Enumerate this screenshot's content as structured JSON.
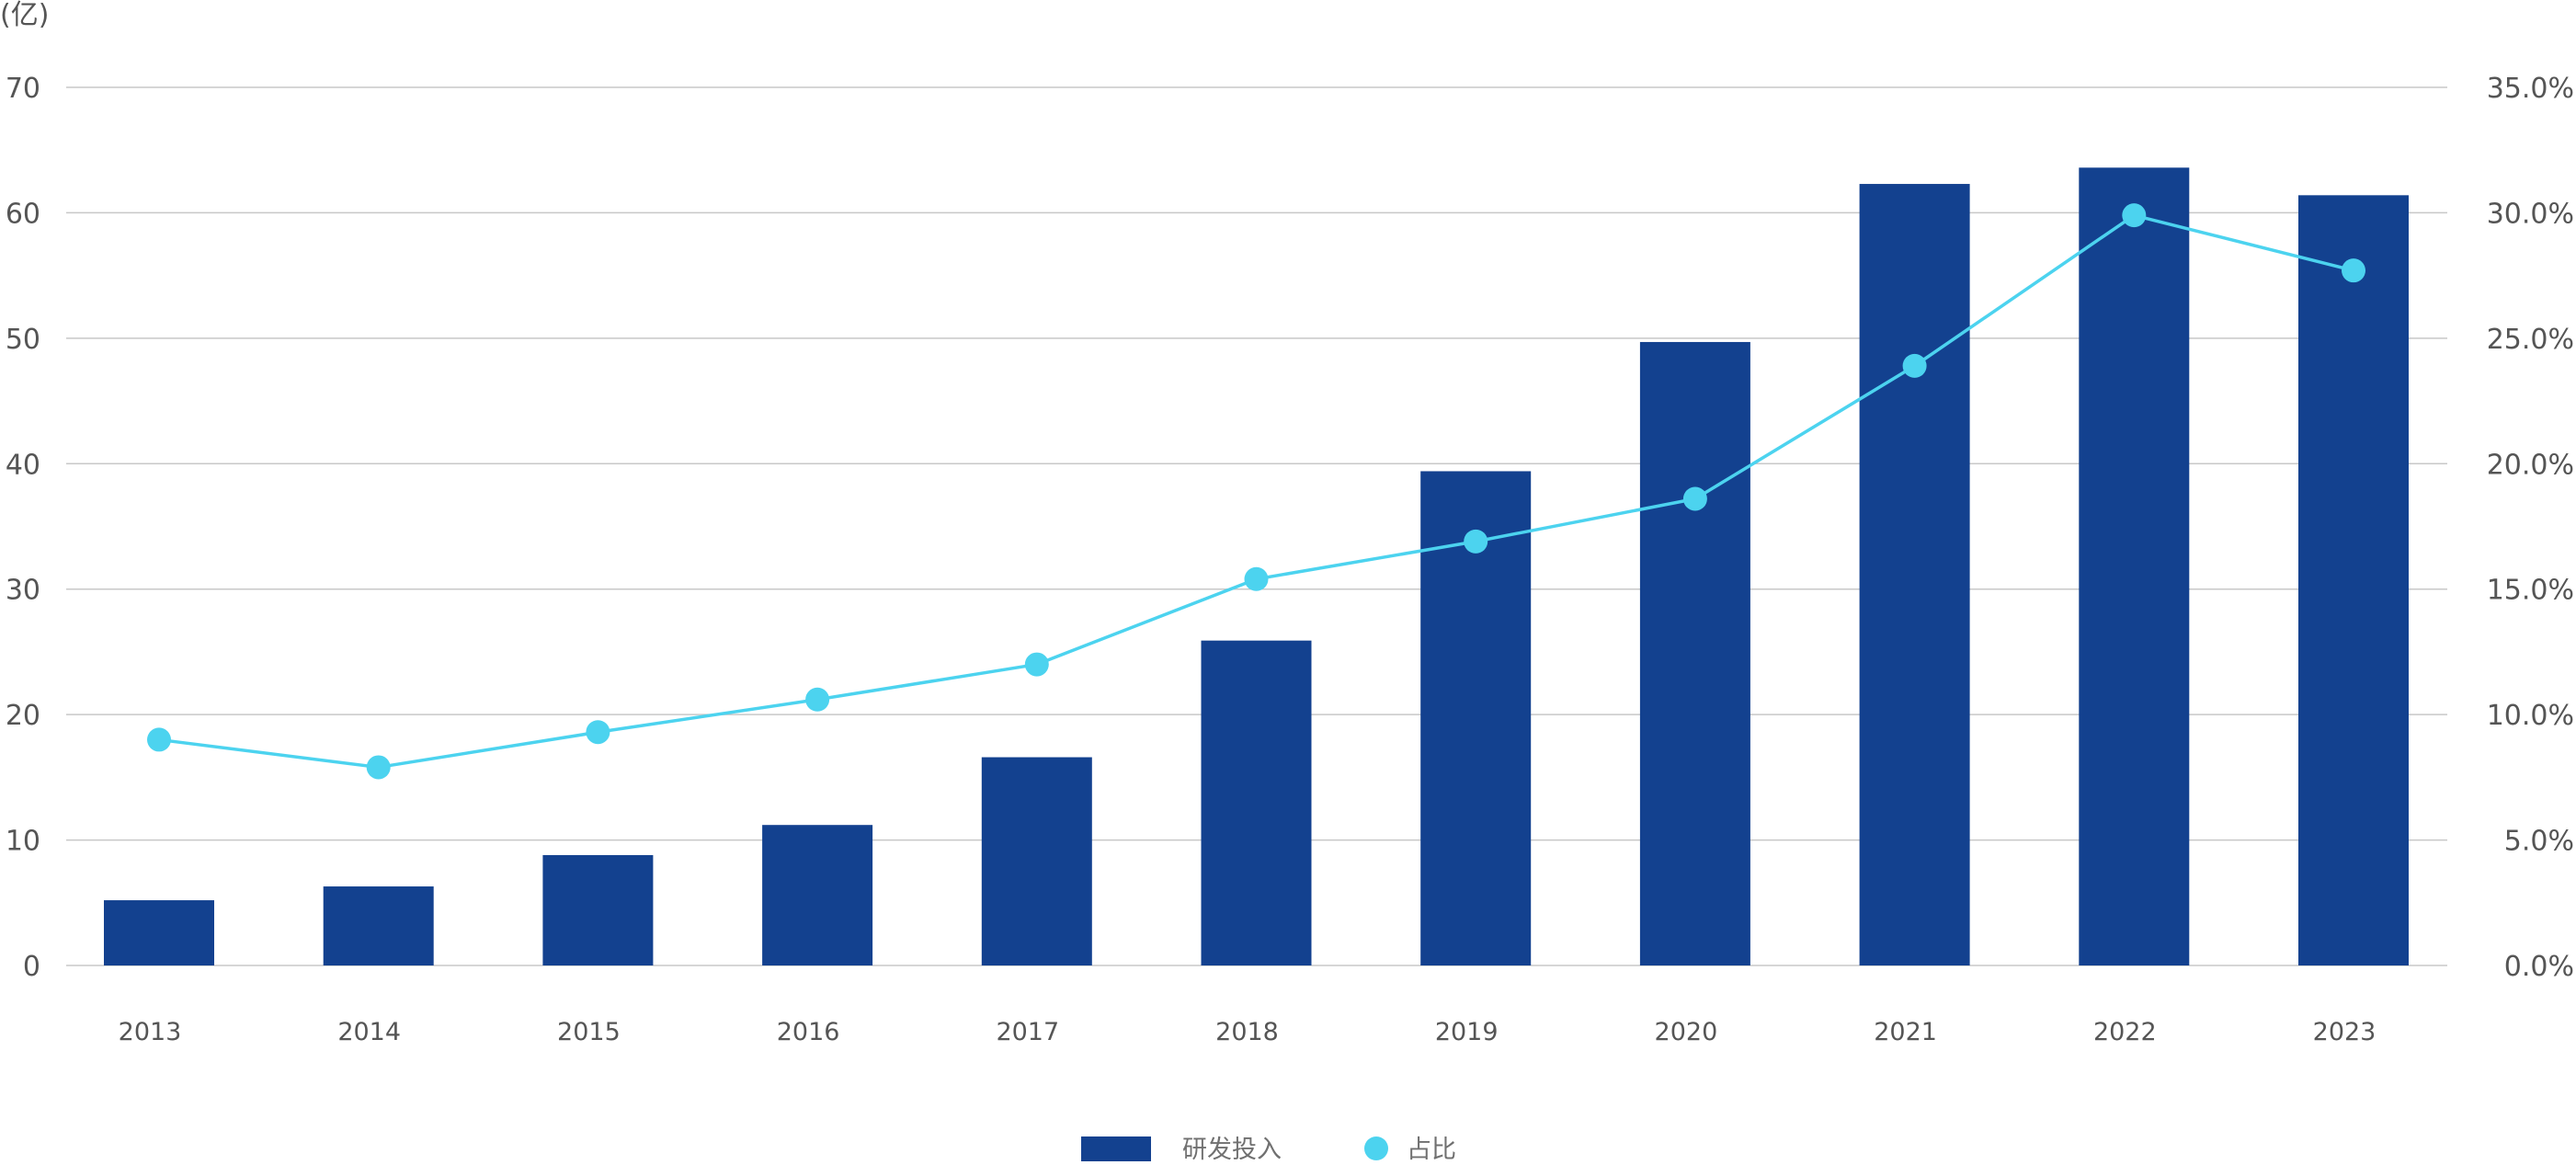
{
  "chart_data": {
    "type": "bar",
    "categories": [
      "2013",
      "2014",
      "2015",
      "2016",
      "2017",
      "2018",
      "2019",
      "2020",
      "2021",
      "2022",
      "2023"
    ],
    "series": [
      {
        "name": "研发投入",
        "type": "bar",
        "axis": "left",
        "color": "#13418F",
        "values": [
          5.2,
          6.3,
          8.8,
          11.2,
          16.6,
          25.9,
          39.4,
          49.7,
          62.3,
          63.6,
          61.4
        ]
      },
      {
        "name": "占比",
        "type": "line",
        "axis": "right",
        "color": "#4CD3EF",
        "values": [
          9.0,
          7.9,
          9.3,
          10.6,
          12.0,
          15.4,
          16.9,
          18.6,
          23.9,
          29.9,
          27.7
        ]
      }
    ],
    "y_left": {
      "unit_label": "(亿)",
      "ylim": [
        0,
        70
      ],
      "ticks": [
        "0",
        "10",
        "20",
        "30",
        "40",
        "50",
        "60",
        "70"
      ]
    },
    "y_right": {
      "ylim": [
        0,
        35
      ],
      "ticks": [
        "0.0%",
        "5.0%",
        "10.0%",
        "15.0%",
        "20.0%",
        "25.0%",
        "30.0%",
        "35.0%"
      ]
    },
    "grid": true,
    "legend_position": "bottom-center",
    "colors": {
      "grid": "#C8C8C8",
      "tick_text": "#555555",
      "legend_text": "#707070"
    }
  }
}
